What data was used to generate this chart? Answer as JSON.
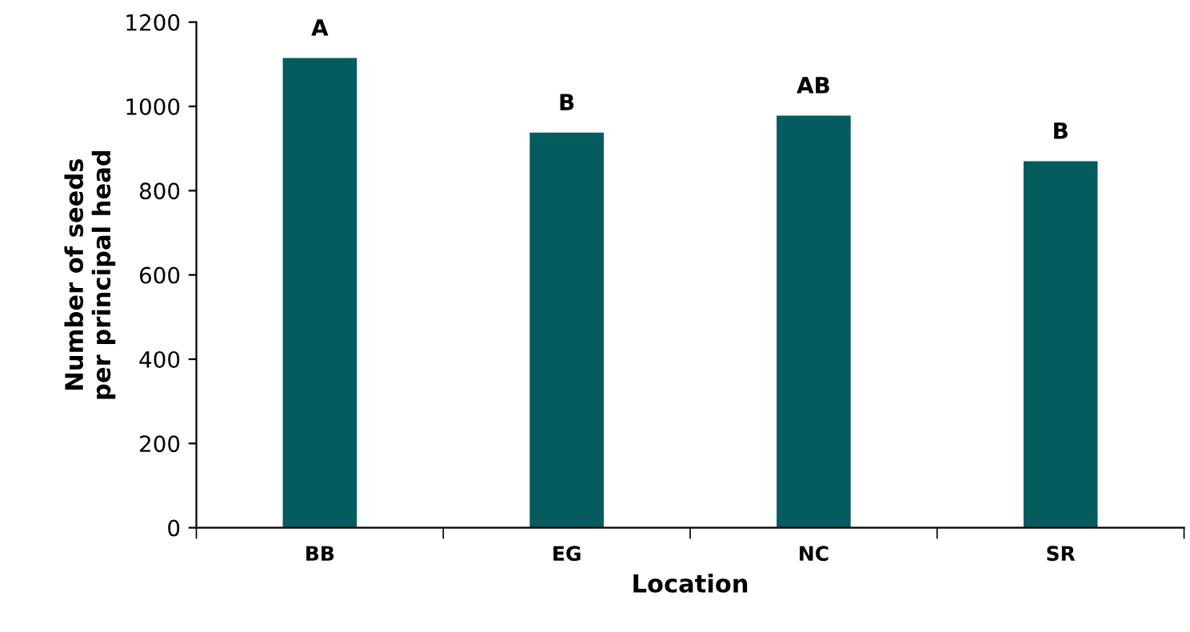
{
  "chart_data": {
    "type": "bar",
    "xlabel": "Location",
    "ylabel": "Number of seeds\nper principal head",
    "categories": [
      "BB",
      "EG",
      "NC",
      "SR"
    ],
    "series": [
      {
        "color": "#045c5e",
        "values": [
          1115,
          938,
          978,
          870
        ]
      }
    ],
    "ylim": [
      0,
      1200
    ],
    "yticks": [
      0,
      200,
      400,
      600,
      800,
      1000,
      1200
    ],
    "grid": false,
    "legend": false,
    "annotations": [
      {
        "text": "A",
        "x": "BB",
        "y": 1115
      },
      {
        "text": "B",
        "x": "EG",
        "y": 938
      },
      {
        "text": "AB",
        "x": "NC",
        "y": 978
      },
      {
        "text": "B",
        "x": "SR",
        "y": 870
      }
    ]
  }
}
